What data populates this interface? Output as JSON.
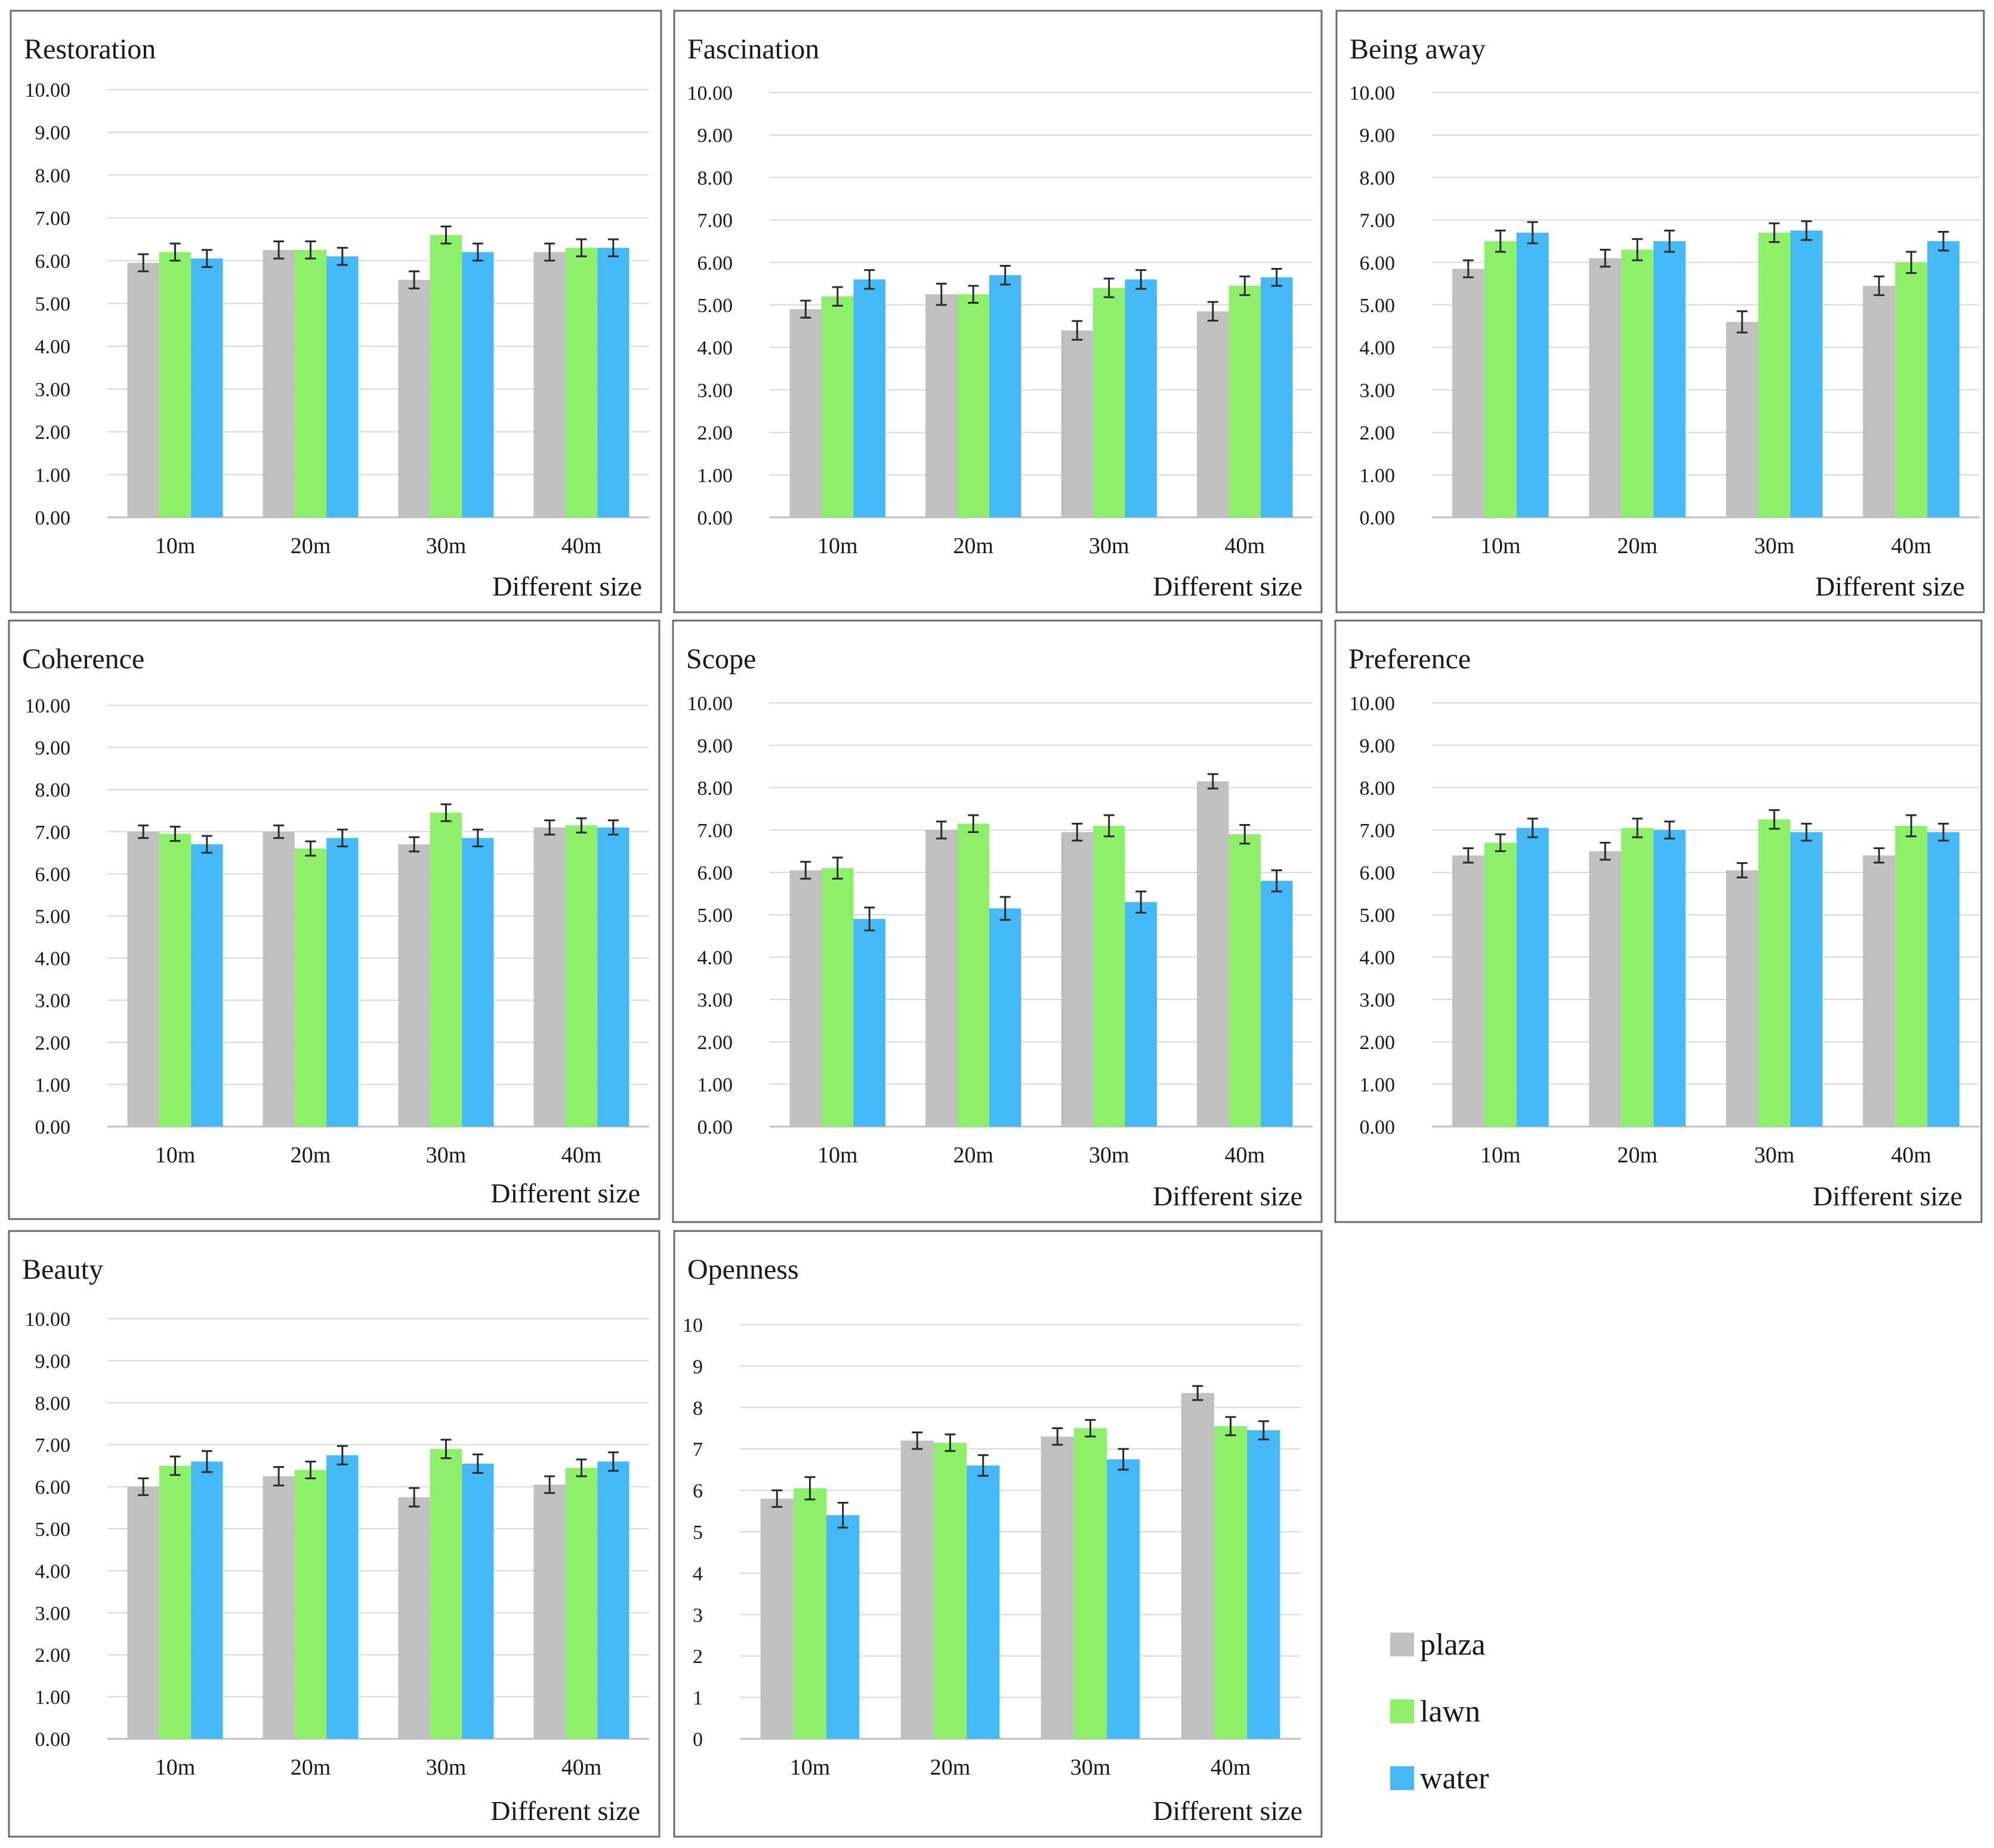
{
  "colors": {
    "plaza": "#c0c0c0",
    "lawn": "#8ef06a",
    "water": "#45b9f5",
    "grid": "#d9d9d9",
    "frame": "#6b6b6b",
    "axis": "#bfbfbf",
    "errorbar": "#2a2a2a"
  },
  "legend": [
    {
      "label": "plaza",
      "color": "#c0c0c0"
    },
    {
      "label": "lawn",
      "color": "#8ef06a"
    },
    {
      "label": "water",
      "color": "#45b9f5"
    }
  ],
  "chart_data": [
    {
      "type": "bar",
      "title": "Restoration",
      "xlabel": "Different size",
      "ylabel": "",
      "categories": [
        "10m",
        "20m",
        "30m",
        "40m"
      ],
      "ylim": [
        0,
        10
      ],
      "yticks": [
        "0.00",
        "1.00",
        "2.00",
        "3.00",
        "4.00",
        "5.00",
        "6.00",
        "7.00",
        "8.00",
        "9.00",
        "10.00"
      ],
      "series": [
        {
          "name": "plaza",
          "values": [
            5.95,
            6.25,
            5.55,
            6.2
          ],
          "errors": [
            0.2,
            0.2,
            0.2,
            0.2
          ]
        },
        {
          "name": "lawn",
          "values": [
            6.2,
            6.25,
            6.6,
            6.3
          ],
          "errors": [
            0.2,
            0.2,
            0.2,
            0.2
          ]
        },
        {
          "name": "water",
          "values": [
            6.05,
            6.1,
            6.2,
            6.3
          ],
          "errors": [
            0.2,
            0.2,
            0.2,
            0.2
          ]
        }
      ]
    },
    {
      "type": "bar",
      "title": "Fascination",
      "xlabel": "Different size",
      "ylabel": "",
      "categories": [
        "10m",
        "20m",
        "30m",
        "40m"
      ],
      "ylim": [
        0,
        10
      ],
      "yticks": [
        "0.00",
        "1.00",
        "2.00",
        "3.00",
        "4.00",
        "5.00",
        "6.00",
        "7.00",
        "8.00",
        "9.00",
        "10.00"
      ],
      "series": [
        {
          "name": "plaza",
          "values": [
            4.9,
            5.25,
            4.4,
            4.85
          ],
          "errors": [
            0.2,
            0.25,
            0.22,
            0.22
          ]
        },
        {
          "name": "lawn",
          "values": [
            5.2,
            5.25,
            5.4,
            5.45
          ],
          "errors": [
            0.22,
            0.2,
            0.22,
            0.22
          ]
        },
        {
          "name": "water",
          "values": [
            5.6,
            5.7,
            5.6,
            5.65
          ],
          "errors": [
            0.22,
            0.22,
            0.22,
            0.2
          ]
        }
      ]
    },
    {
      "type": "bar",
      "title": "Being away",
      "xlabel": "Different size",
      "ylabel": "",
      "categories": [
        "10m",
        "20m",
        "30m",
        "40m"
      ],
      "ylim": [
        0,
        10
      ],
      "yticks": [
        "0.00",
        "1.00",
        "2.00",
        "3.00",
        "4.00",
        "5.00",
        "6.00",
        "7.00",
        "8.00",
        "9.00",
        "10.00"
      ],
      "series": [
        {
          "name": "plaza",
          "values": [
            5.85,
            6.1,
            4.6,
            5.45
          ],
          "errors": [
            0.2,
            0.2,
            0.25,
            0.22
          ]
        },
        {
          "name": "lawn",
          "values": [
            6.5,
            6.3,
            6.7,
            6.0
          ],
          "errors": [
            0.25,
            0.25,
            0.22,
            0.25
          ]
        },
        {
          "name": "water",
          "values": [
            6.7,
            6.5,
            6.75,
            6.5
          ],
          "errors": [
            0.25,
            0.25,
            0.22,
            0.22
          ]
        }
      ]
    },
    {
      "type": "bar",
      "title": "Coherence",
      "xlabel": "Different size",
      "ylabel": "",
      "categories": [
        "10m",
        "20m",
        "30m",
        "40m"
      ],
      "ylim": [
        0,
        10
      ],
      "yticks": [
        "0.00",
        "1.00",
        "2.00",
        "3.00",
        "4.00",
        "5.00",
        "6.00",
        "7.00",
        "8.00",
        "9.00",
        "10.00"
      ],
      "series": [
        {
          "name": "plaza",
          "values": [
            7.0,
            7.0,
            6.7,
            7.1
          ],
          "errors": [
            0.15,
            0.15,
            0.17,
            0.17
          ]
        },
        {
          "name": "lawn",
          "values": [
            6.95,
            6.6,
            7.45,
            7.15
          ],
          "errors": [
            0.17,
            0.17,
            0.2,
            0.17
          ]
        },
        {
          "name": "water",
          "values": [
            6.7,
            6.85,
            6.85,
            7.1
          ],
          "errors": [
            0.2,
            0.2,
            0.2,
            0.17
          ]
        }
      ]
    },
    {
      "type": "bar",
      "title": "Scope",
      "xlabel": "Different size",
      "ylabel": "",
      "categories": [
        "10m",
        "20m",
        "30m",
        "40m"
      ],
      "ylim": [
        0,
        10
      ],
      "yticks": [
        "0.00",
        "1.00",
        "2.00",
        "3.00",
        "4.00",
        "5.00",
        "6.00",
        "7.00",
        "8.00",
        "9.00",
        "10.00"
      ],
      "series": [
        {
          "name": "plaza",
          "values": [
            6.05,
            7.0,
            6.95,
            8.15
          ],
          "errors": [
            0.2,
            0.2,
            0.2,
            0.17
          ]
        },
        {
          "name": "lawn",
          "values": [
            6.1,
            7.15,
            7.1,
            6.9
          ],
          "errors": [
            0.25,
            0.2,
            0.25,
            0.22
          ]
        },
        {
          "name": "water",
          "values": [
            4.9,
            5.15,
            5.3,
            5.8
          ],
          "errors": [
            0.27,
            0.27,
            0.25,
            0.25
          ]
        }
      ]
    },
    {
      "type": "bar",
      "title": "Preference",
      "xlabel": "Different size",
      "ylabel": "",
      "categories": [
        "10m",
        "20m",
        "30m",
        "40m"
      ],
      "ylim": [
        0,
        10
      ],
      "yticks": [
        "0.00",
        "1.00",
        "2.00",
        "3.00",
        "4.00",
        "5.00",
        "6.00",
        "7.00",
        "8.00",
        "9.00",
        "10.00"
      ],
      "series": [
        {
          "name": "plaza",
          "values": [
            6.4,
            6.5,
            6.05,
            6.4
          ],
          "errors": [
            0.17,
            0.2,
            0.17,
            0.17
          ]
        },
        {
          "name": "lawn",
          "values": [
            6.7,
            7.05,
            7.25,
            7.1
          ],
          "errors": [
            0.2,
            0.22,
            0.22,
            0.25
          ]
        },
        {
          "name": "water",
          "values": [
            7.05,
            7.0,
            6.95,
            6.95
          ],
          "errors": [
            0.22,
            0.2,
            0.2,
            0.2
          ]
        }
      ]
    },
    {
      "type": "bar",
      "title": "Beauty",
      "xlabel": "Different size",
      "ylabel": "",
      "categories": [
        "10m",
        "20m",
        "30m",
        "40m"
      ],
      "ylim": [
        0,
        10
      ],
      "yticks": [
        "0.00",
        "1.00",
        "2.00",
        "3.00",
        "4.00",
        "5.00",
        "6.00",
        "7.00",
        "8.00",
        "9.00",
        "10.00"
      ],
      "series": [
        {
          "name": "plaza",
          "values": [
            6.0,
            6.25,
            5.75,
            6.05
          ],
          "errors": [
            0.2,
            0.22,
            0.22,
            0.2
          ]
        },
        {
          "name": "lawn",
          "values": [
            6.5,
            6.4,
            6.9,
            6.45
          ],
          "errors": [
            0.22,
            0.2,
            0.22,
            0.2
          ]
        },
        {
          "name": "water",
          "values": [
            6.6,
            6.75,
            6.55,
            6.6
          ],
          "errors": [
            0.25,
            0.22,
            0.22,
            0.22
          ]
        }
      ]
    },
    {
      "type": "bar",
      "title": "Openness",
      "xlabel": "Different size",
      "ylabel": "",
      "categories": [
        "10m",
        "20m",
        "30m",
        "40m"
      ],
      "ylim": [
        0,
        10
      ],
      "yticks": [
        "0",
        "1",
        "2",
        "3",
        "4",
        "5",
        "6",
        "7",
        "8",
        "9",
        "10"
      ],
      "series": [
        {
          "name": "plaza",
          "values": [
            5.8,
            7.2,
            7.3,
            8.35
          ],
          "errors": [
            0.2,
            0.2,
            0.2,
            0.17
          ]
        },
        {
          "name": "lawn",
          "values": [
            6.05,
            7.15,
            7.5,
            7.55
          ],
          "errors": [
            0.27,
            0.2,
            0.2,
            0.22
          ]
        },
        {
          "name": "water",
          "values": [
            5.4,
            6.6,
            6.75,
            7.45
          ],
          "errors": [
            0.3,
            0.25,
            0.25,
            0.22
          ]
        }
      ]
    }
  ]
}
